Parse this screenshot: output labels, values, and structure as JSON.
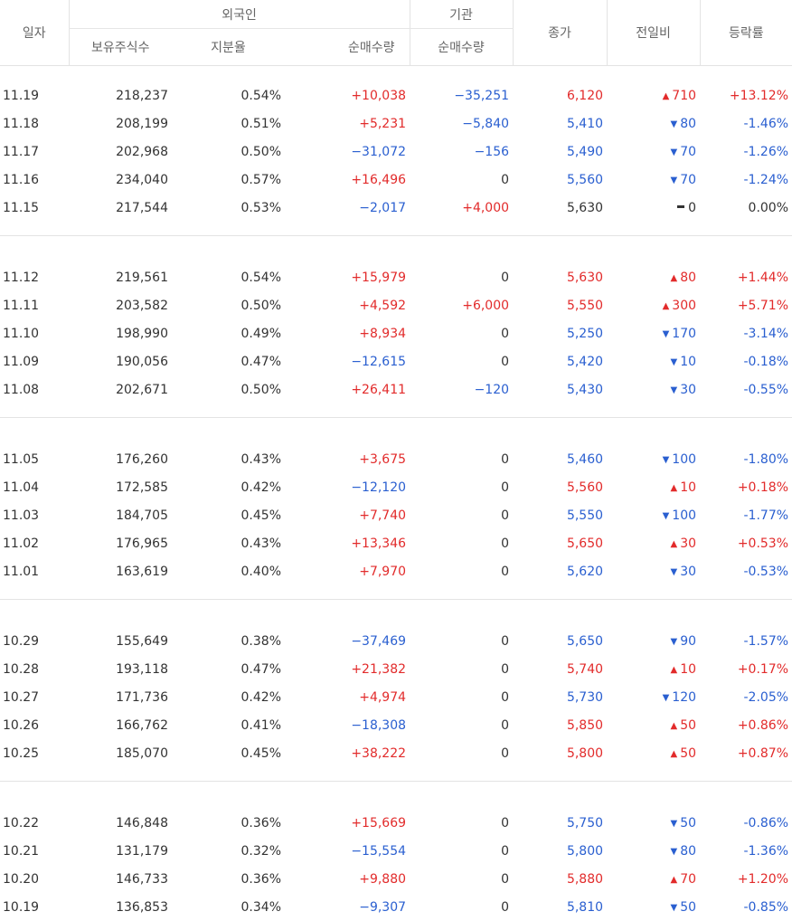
{
  "headers": {
    "date": "일자",
    "foreign": "외국인",
    "institution": "기관",
    "close": "종가",
    "diff": "전일비",
    "rate": "등락률",
    "holdings": "보유주식수",
    "ratio": "지분율",
    "foreign_net": "순매수량",
    "inst_net": "순매수량"
  },
  "groups": [
    [
      {
        "date": "11.19",
        "holdings": "218,237",
        "ratio": "0.54%",
        "fnet": "+10,038",
        "inet": "−35,251",
        "close": "6,120",
        "dir": "up",
        "diff": "710",
        "rate": "+13.12%"
      },
      {
        "date": "11.18",
        "holdings": "208,199",
        "ratio": "0.51%",
        "fnet": "+5,231",
        "inet": "−5,840",
        "close": "5,410",
        "dir": "down",
        "diff": "80",
        "rate": "-1.46%"
      },
      {
        "date": "11.17",
        "holdings": "202,968",
        "ratio": "0.50%",
        "fnet": "−31,072",
        "inet": "−156",
        "close": "5,490",
        "dir": "down",
        "diff": "70",
        "rate": "-1.26%"
      },
      {
        "date": "11.16",
        "holdings": "234,040",
        "ratio": "0.57%",
        "fnet": "+16,496",
        "inet": "0",
        "close": "5,560",
        "dir": "down",
        "diff": "70",
        "rate": "-1.24%"
      },
      {
        "date": "11.15",
        "holdings": "217,544",
        "ratio": "0.53%",
        "fnet": "−2,017",
        "inet": "+4,000",
        "close": "5,630",
        "dir": "flat",
        "diff": "0",
        "rate": "0.00%"
      }
    ],
    [
      {
        "date": "11.12",
        "holdings": "219,561",
        "ratio": "0.54%",
        "fnet": "+15,979",
        "inet": "0",
        "close": "5,630",
        "dir": "up",
        "diff": "80",
        "rate": "+1.44%"
      },
      {
        "date": "11.11",
        "holdings": "203,582",
        "ratio": "0.50%",
        "fnet": "+4,592",
        "inet": "+6,000",
        "close": "5,550",
        "dir": "up",
        "diff": "300",
        "rate": "+5.71%"
      },
      {
        "date": "11.10",
        "holdings": "198,990",
        "ratio": "0.49%",
        "fnet": "+8,934",
        "inet": "0",
        "close": "5,250",
        "dir": "down",
        "diff": "170",
        "rate": "-3.14%"
      },
      {
        "date": "11.09",
        "holdings": "190,056",
        "ratio": "0.47%",
        "fnet": "−12,615",
        "inet": "0",
        "close": "5,420",
        "dir": "down",
        "diff": "10",
        "rate": "-0.18%"
      },
      {
        "date": "11.08",
        "holdings": "202,671",
        "ratio": "0.50%",
        "fnet": "+26,411",
        "inet": "−120",
        "close": "5,430",
        "dir": "down",
        "diff": "30",
        "rate": "-0.55%"
      }
    ],
    [
      {
        "date": "11.05",
        "holdings": "176,260",
        "ratio": "0.43%",
        "fnet": "+3,675",
        "inet": "0",
        "close": "5,460",
        "dir": "down",
        "diff": "100",
        "rate": "-1.80%"
      },
      {
        "date": "11.04",
        "holdings": "172,585",
        "ratio": "0.42%",
        "fnet": "−12,120",
        "inet": "0",
        "close": "5,560",
        "dir": "up",
        "diff": "10",
        "rate": "+0.18%"
      },
      {
        "date": "11.03",
        "holdings": "184,705",
        "ratio": "0.45%",
        "fnet": "+7,740",
        "inet": "0",
        "close": "5,550",
        "dir": "down",
        "diff": "100",
        "rate": "-1.77%"
      },
      {
        "date": "11.02",
        "holdings": "176,965",
        "ratio": "0.43%",
        "fnet": "+13,346",
        "inet": "0",
        "close": "5,650",
        "dir": "up",
        "diff": "30",
        "rate": "+0.53%"
      },
      {
        "date": "11.01",
        "holdings": "163,619",
        "ratio": "0.40%",
        "fnet": "+7,970",
        "inet": "0",
        "close": "5,620",
        "dir": "down",
        "diff": "30",
        "rate": "-0.53%"
      }
    ],
    [
      {
        "date": "10.29",
        "holdings": "155,649",
        "ratio": "0.38%",
        "fnet": "−37,469",
        "inet": "0",
        "close": "5,650",
        "dir": "down",
        "diff": "90",
        "rate": "-1.57%"
      },
      {
        "date": "10.28",
        "holdings": "193,118",
        "ratio": "0.47%",
        "fnet": "+21,382",
        "inet": "0",
        "close": "5,740",
        "dir": "up",
        "diff": "10",
        "rate": "+0.17%"
      },
      {
        "date": "10.27",
        "holdings": "171,736",
        "ratio": "0.42%",
        "fnet": "+4,974",
        "inet": "0",
        "close": "5,730",
        "dir": "down",
        "diff": "120",
        "rate": "-2.05%"
      },
      {
        "date": "10.26",
        "holdings": "166,762",
        "ratio": "0.41%",
        "fnet": "−18,308",
        "inet": "0",
        "close": "5,850",
        "dir": "up",
        "diff": "50",
        "rate": "+0.86%"
      },
      {
        "date": "10.25",
        "holdings": "185,070",
        "ratio": "0.45%",
        "fnet": "+38,222",
        "inet": "0",
        "close": "5,800",
        "dir": "up",
        "diff": "50",
        "rate": "+0.87%"
      }
    ],
    [
      {
        "date": "10.22",
        "holdings": "146,848",
        "ratio": "0.36%",
        "fnet": "+15,669",
        "inet": "0",
        "close": "5,750",
        "dir": "down",
        "diff": "50",
        "rate": "-0.86%"
      },
      {
        "date": "10.21",
        "holdings": "131,179",
        "ratio": "0.32%",
        "fnet": "−15,554",
        "inet": "0",
        "close": "5,800",
        "dir": "down",
        "diff": "80",
        "rate": "-1.36%"
      },
      {
        "date": "10.20",
        "holdings": "146,733",
        "ratio": "0.36%",
        "fnet": "+9,880",
        "inet": "0",
        "close": "5,880",
        "dir": "up",
        "diff": "70",
        "rate": "+1.20%"
      },
      {
        "date": "10.19",
        "holdings": "136,853",
        "ratio": "0.34%",
        "fnet": "−9,307",
        "inet": "0",
        "close": "5,810",
        "dir": "down",
        "diff": "50",
        "rate": "-0.85%"
      }
    ]
  ],
  "colors": {
    "up": "#e22b2b",
    "down": "#2a5fd0",
    "flat": "#333333"
  }
}
